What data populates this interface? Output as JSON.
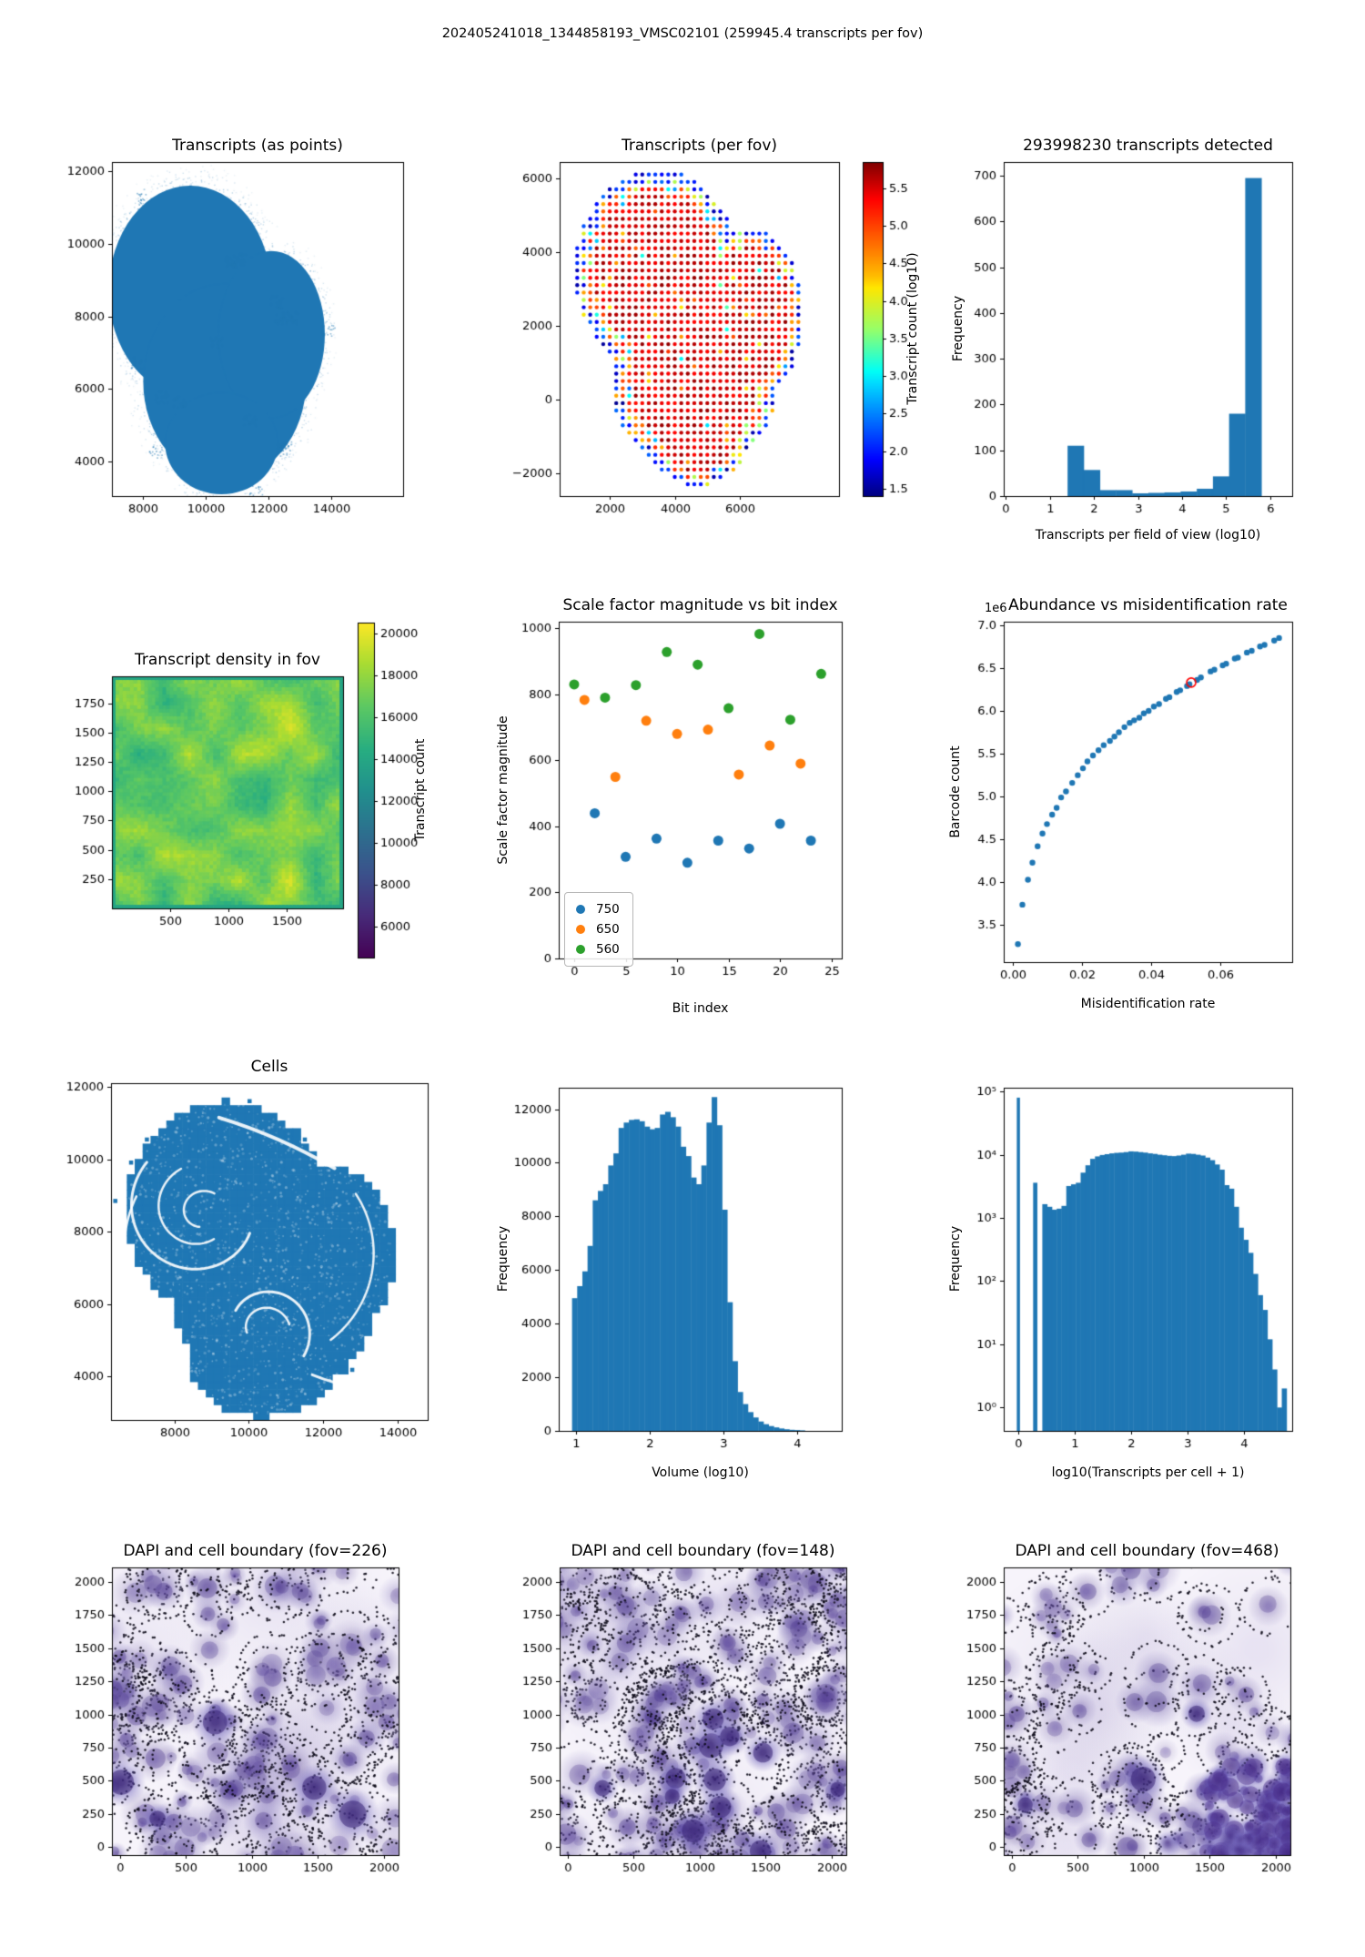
{
  "figure": {
    "title": "202405241018_1344858193_VMSC02101 (259945.4 transcripts per fov)",
    "background": "#ffffff",
    "accent_blue": "#1f77b4",
    "accent_orange": "#ff7f0e",
    "accent_green": "#2ca02c"
  },
  "chart_data": [
    {
      "id": "transcripts_points",
      "type": "scatter_blob",
      "title": "Transcripts (as points)",
      "xlabel": "",
      "ylabel": "",
      "xticks": [
        8000,
        10000,
        12000,
        14000
      ],
      "yticks": [
        12000,
        10000,
        8000,
        6000,
        4000
      ],
      "xlim": [
        7000,
        16300
      ],
      "ylim": [
        3050,
        12250
      ],
      "point_color": "#1f77b4",
      "blob": [
        [
          9500,
          8700,
          2600,
          2900
        ],
        [
          10600,
          6200,
          2600,
          2700
        ],
        [
          12100,
          7500,
          1700,
          2300
        ],
        [
          10500,
          4500,
          1800,
          1400
        ]
      ]
    },
    {
      "id": "transcripts_per_fov",
      "type": "fov_dots",
      "title": "Transcripts (per fov)",
      "xlabel": "",
      "ylabel": "",
      "xticks": [
        2000,
        4000,
        6000
      ],
      "yticks": {
        "values": [
          6000,
          4000,
          2000,
          0,
          -2000
        ],
        "labels": [
          "6000",
          "4000",
          "2000",
          "0",
          "−2000"
        ]
      },
      "xlim": [
        460,
        9050
      ],
      "ylim": [
        -2620,
        6440
      ],
      "grid_step": 200,
      "blob": [
        [
          3450,
          3500,
          2450,
          2650
        ],
        [
          4600,
          700,
          2500,
          2700
        ],
        [
          4700,
          -500,
          1700,
          1800
        ],
        [
          6300,
          2300,
          1600,
          2300
        ]
      ],
      "colorbar": {
        "label": "Transcript count (log10)",
        "cmap": "jet",
        "range": [
          1.4,
          5.85
        ],
        "ticks": [
          5.5,
          5.0,
          4.5,
          4.0,
          3.5,
          3.0,
          2.5,
          2.0,
          1.5
        ],
        "tick_labels": [
          "5.5",
          "5.0",
          "4.5",
          "4.0",
          "3.5",
          "3.0",
          "2.5",
          "2.0",
          "1.5"
        ]
      }
    },
    {
      "id": "transcripts_hist",
      "type": "hist",
      "title": "293998230 transcripts detected",
      "xlabel": "Transcripts per field of view (log10)",
      "ylabel": "Frequency",
      "xticks": [
        0,
        1,
        2,
        3,
        4,
        5,
        6
      ],
      "yticks": [
        0,
        100,
        200,
        300,
        400,
        500,
        600,
        700
      ],
      "xlim": [
        -0.05,
        6.5
      ],
      "ylim": [
        0,
        730
      ],
      "bar_color": "#1f77b4",
      "bins": {
        "start": 1.4,
        "width": 0.3667,
        "counts": [
          110,
          57,
          13,
          13,
          6,
          7,
          8,
          10,
          16,
          43,
          180,
          695
        ]
      }
    },
    {
      "id": "density_heatmap",
      "type": "heatmap",
      "title": "Transcript density in fov",
      "xlabel": "",
      "ylabel": "",
      "xticks": [
        500,
        1000,
        1500
      ],
      "yticks": [
        1750,
        1500,
        1250,
        1000,
        750,
        500,
        250
      ],
      "xlim": [
        0,
        1980
      ],
      "ylim": [
        0,
        1980
      ],
      "value_range": [
        14200,
        20300
      ],
      "colorbar": {
        "label": "Transcript count",
        "cmap": "viridis",
        "range": [
          4500,
          20500
        ],
        "ticks": [
          20000,
          18000,
          16000,
          14000,
          12000,
          10000,
          8000,
          6000
        ],
        "tick_labels": [
          "20000",
          "18000",
          "16000",
          "14000",
          "12000",
          "10000",
          "8000",
          "6000"
        ]
      }
    },
    {
      "id": "scale_factor",
      "type": "scatter_series",
      "title": "Scale factor magnitude vs bit index",
      "xlabel": "Bit index",
      "ylabel": "Scale factor magnitude",
      "xticks": [
        0,
        5,
        10,
        15,
        20,
        25
      ],
      "yticks": [
        0,
        200,
        400,
        600,
        800,
        1000
      ],
      "xlim": [
        -1.5,
        26
      ],
      "ylim": [
        0,
        1020
      ],
      "series": [
        {
          "name": "750",
          "color": "#1f77b4",
          "x": [
            2,
            5,
            8,
            11,
            14,
            17,
            20,
            23
          ],
          "y": [
            440,
            308,
            363,
            290,
            357,
            333,
            408,
            357
          ]
        },
        {
          "name": "650",
          "color": "#ff7f0e",
          "x": [
            1,
            4,
            7,
            10,
            13,
            16,
            19,
            22
          ],
          "y": [
            783,
            550,
            720,
            680,
            693,
            557,
            645,
            590
          ]
        },
        {
          "name": "560",
          "color": "#2ca02c",
          "x": [
            0,
            3,
            6,
            9,
            12,
            15,
            18,
            21,
            24
          ],
          "y": [
            830,
            790,
            828,
            928,
            890,
            758,
            983,
            723,
            862
          ]
        }
      ],
      "legend": {
        "entries": [
          {
            "label": "750",
            "color": "#1f77b4"
          },
          {
            "label": "650",
            "color": "#ff7f0e"
          },
          {
            "label": "560",
            "color": "#2ca02c"
          }
        ]
      }
    },
    {
      "id": "abundance",
      "type": "curve_scatter",
      "title": "Abundance vs misidentification rate",
      "xlabel": "Misidentification rate",
      "ylabel": "Barcode count",
      "offset_text": "1e6",
      "xticks": {
        "values": [
          0,
          0.02,
          0.04,
          0.06
        ],
        "labels": [
          "0.00",
          "0.02",
          "0.04",
          "0.06"
        ]
      },
      "yticks": {
        "values": [
          3.5,
          4.0,
          4.5,
          5.0,
          5.5,
          6.0,
          6.5,
          7.0
        ],
        "labels": [
          "3.5",
          "4.0",
          "4.5",
          "5.0",
          "5.5",
          "6.0",
          "6.5",
          "7.0"
        ]
      },
      "xlim": [
        -0.0026,
        0.0808
      ],
      "ylim": [
        3.07,
        7.04
      ],
      "point_color": "#1f77b4",
      "points": [
        [
          0.0015,
          3.28
        ],
        [
          0.0028,
          3.74
        ],
        [
          0.0044,
          4.03
        ],
        [
          0.0057,
          4.23
        ],
        [
          0.0072,
          4.42
        ],
        [
          0.0086,
          4.57
        ],
        [
          0.0099,
          4.68
        ],
        [
          0.0114,
          4.79
        ],
        [
          0.0127,
          4.87
        ],
        [
          0.014,
          4.99
        ],
        [
          0.0154,
          5.06
        ],
        [
          0.0172,
          5.16
        ],
        [
          0.0188,
          5.25
        ],
        [
          0.0203,
          5.33
        ],
        [
          0.0216,
          5.41
        ],
        [
          0.0232,
          5.48
        ],
        [
          0.0248,
          5.54
        ],
        [
          0.0263,
          5.6
        ],
        [
          0.0281,
          5.65
        ],
        [
          0.0294,
          5.7
        ],
        [
          0.0307,
          5.75
        ],
        [
          0.0323,
          5.81
        ],
        [
          0.0338,
          5.86
        ],
        [
          0.0351,
          5.89
        ],
        [
          0.0366,
          5.92
        ],
        [
          0.0379,
          5.97
        ],
        [
          0.0393,
          6.0
        ],
        [
          0.0408,
          6.05
        ],
        [
          0.0423,
          6.08
        ],
        [
          0.0443,
          6.14
        ],
        [
          0.0453,
          6.16
        ],
        [
          0.0474,
          6.22
        ],
        [
          0.0484,
          6.24
        ],
        [
          0.0504,
          6.29
        ],
        [
          0.0511,
          6.31
        ],
        [
          0.0533,
          6.36
        ],
        [
          0.0544,
          6.39
        ],
        [
          0.0572,
          6.46
        ],
        [
          0.0583,
          6.48
        ],
        [
          0.0607,
          6.53
        ],
        [
          0.0617,
          6.55
        ],
        [
          0.0642,
          6.61
        ],
        [
          0.0651,
          6.62
        ],
        [
          0.0677,
          6.68
        ],
        [
          0.0691,
          6.7
        ],
        [
          0.0715,
          6.75
        ],
        [
          0.0728,
          6.77
        ],
        [
          0.0756,
          6.82
        ],
        [
          0.077,
          6.85
        ]
      ],
      "highlight_point": {
        "x": 0.0516,
        "y": 6.33,
        "color": "#ff0000"
      }
    },
    {
      "id": "cells",
      "type": "cells_blob",
      "title": "Cells",
      "xlabel": "",
      "ylabel": "",
      "xticks": [
        8000,
        10000,
        12000,
        14000
      ],
      "yticks": [
        12000,
        10000,
        8000,
        6000,
        4000
      ],
      "xlim": [
        6300,
        14800
      ],
      "ylim": [
        2800,
        12100
      ],
      "point_color": "#1f77b4",
      "blob": [
        [
          9400,
          8600,
          2700,
          3000
        ],
        [
          10700,
          6200,
          2700,
          2800
        ],
        [
          12200,
          7400,
          1700,
          2400
        ],
        [
          10400,
          4400,
          2000,
          1500
        ]
      ]
    },
    {
      "id": "volume_hist",
      "type": "hist",
      "title": "",
      "xlabel": "Volume (log10)",
      "ylabel": "Frequency",
      "xticks": [
        1,
        2,
        3,
        4
      ],
      "yticks": [
        0,
        2000,
        4000,
        6000,
        8000,
        10000,
        12000
      ],
      "xlim": [
        0.77,
        4.6
      ],
      "ylim": [
        0,
        12800
      ],
      "bar_color": "#1f77b4",
      "bins": {
        "start": 0.95,
        "width": 0.07,
        "counts": [
          4950,
          5400,
          5950,
          6900,
          8600,
          8950,
          9200,
          9900,
          10350,
          11300,
          11500,
          11600,
          11620,
          11550,
          11350,
          11250,
          11300,
          11800,
          11900,
          11700,
          11350,
          10600,
          10250,
          9450,
          9200,
          9900,
          11500,
          12450,
          11400,
          8250,
          4800,
          2600,
          1450,
          1000,
          700,
          500,
          350,
          250,
          180,
          130,
          90,
          60,
          40,
          30,
          20
        ]
      }
    },
    {
      "id": "transcripts_per_cell_hist",
      "type": "hist_log",
      "title": "",
      "xlabel": "log10(Transcripts per cell + 1)",
      "ylabel": "Frequency",
      "xticks": [
        0,
        1,
        2,
        3,
        4
      ],
      "yticks": {
        "values": [
          1,
          10,
          100,
          1000,
          10000,
          100000
        ],
        "labels": [
          "10⁰",
          "10¹",
          "10²",
          "10³",
          "10⁴",
          "10⁵"
        ]
      },
      "xlim": [
        -0.26,
        4.86
      ],
      "ylim_log": [
        -0.37,
        5.06
      ],
      "bar_color": "#1f77b4",
      "special_bars": [
        [
          -0.028,
          0.056,
          80000
        ],
        [
          0.262,
          0.075,
          3600
        ]
      ],
      "bins": {
        "start": 0.425,
        "width": 0.085,
        "counts": [
          1650,
          1500,
          1350,
          1400,
          1550,
          3200,
          3400,
          3600,
          5200,
          6800,
          8600,
          9400,
          9900,
          10200,
          10500,
          10700,
          10800,
          11000,
          11300,
          11200,
          11000,
          10800,
          10500,
          10300,
          10000,
          9800,
          9600,
          9500,
          9700,
          10000,
          10400,
          10300,
          10000,
          9700,
          9000,
          8200,
          7000,
          5800,
          3300,
          2900,
          1500,
          700,
          450,
          280,
          130,
          60,
          35,
          12,
          4,
          1,
          2
        ]
      }
    },
    {
      "id": "dapi_226",
      "type": "dapi",
      "title": "DAPI and cell boundary (fov=226)",
      "xlabel": "",
      "ylabel": "",
      "xticks": [
        0,
        500,
        1000,
        1500,
        2000
      ],
      "yticks": [
        0,
        250,
        500,
        750,
        1000,
        1250,
        1500,
        1750,
        2000
      ],
      "xlim": [
        -60,
        2110
      ],
      "ylim": [
        -60,
        2110
      ],
      "style": {
        "seed": 226,
        "n_cells": 125,
        "corner_cluster": false,
        "sparse_top_right": false,
        "extra_dark": 5
      }
    },
    {
      "id": "dapi_148",
      "type": "dapi",
      "title": "DAPI and cell boundary (fov=148)",
      "xlabel": "",
      "ylabel": "",
      "xticks": [
        0,
        500,
        1000,
        1500,
        2000
      ],
      "yticks": [
        0,
        250,
        500,
        750,
        1000,
        1250,
        1500,
        1750,
        2000
      ],
      "xlim": [
        -60,
        2110
      ],
      "ylim": [
        -60,
        2110
      ],
      "style": {
        "seed": 148,
        "n_cells": 175,
        "corner_cluster": false,
        "sparse_top_right": false,
        "extra_dark": 12
      }
    },
    {
      "id": "dapi_468",
      "type": "dapi",
      "title": "DAPI and cell boundary (fov=468)",
      "xlabel": "",
      "ylabel": "",
      "xticks": [
        0,
        500,
        1000,
        1500,
        2000
      ],
      "yticks": [
        0,
        250,
        500,
        750,
        1000,
        1250,
        1500,
        1750,
        2000
      ],
      "xlim": [
        -60,
        2110
      ],
      "ylim": [
        -60,
        2110
      ],
      "style": {
        "seed": 468,
        "n_cells": 95,
        "corner_cluster": true,
        "sparse_top_right": true,
        "extra_dark": 3
      }
    }
  ]
}
